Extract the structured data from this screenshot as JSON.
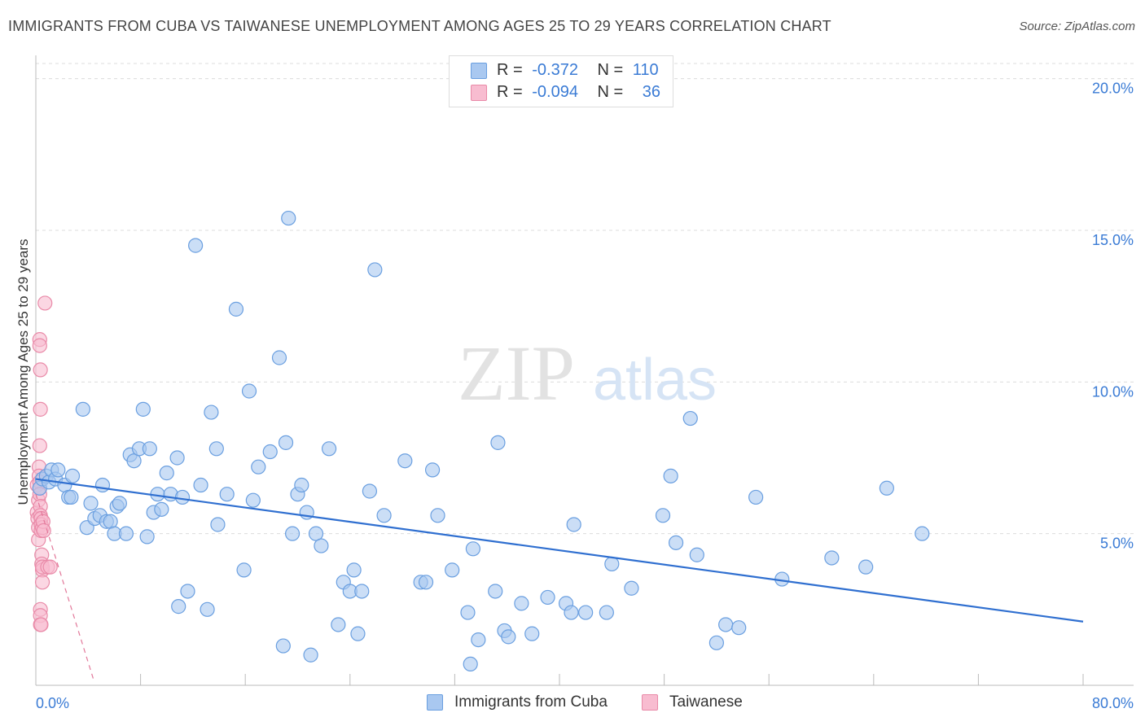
{
  "title": "IMMIGRANTS FROM CUBA VS TAIWANESE UNEMPLOYMENT AMONG AGES 25 TO 29 YEARS CORRELATION CHART",
  "source": "Source: ZipAtlas.com",
  "watermark": {
    "zip": "ZIP",
    "atlas": "atlas"
  },
  "legend": {
    "r_label": "R =",
    "n_label": "N =",
    "rows": [
      {
        "r": "-0.372",
        "n": "110",
        "color": "#a9c8f0",
        "border": "#6a9fe0"
      },
      {
        "r": "-0.094",
        "n": "36",
        "color": "#f8bcd0",
        "border": "#e98aa8"
      }
    ]
  },
  "bottom_legend": [
    {
      "label": "Immigrants from Cuba",
      "color": "#a9c8f0",
      "border": "#6a9fe0"
    },
    {
      "label": "Taiwanese",
      "color": "#f8bcd0",
      "border": "#e98aa8"
    }
  ],
  "chart_data": {
    "type": "scatter",
    "title": "IMMIGRANTS FROM CUBA VS TAIWANESE UNEMPLOYMENT AMONG AGES 25 TO 29 YEARS CORRELATION CHART",
    "xlabel": "",
    "ylabel": "Unemployment Among Ages 25 to 29 years",
    "xlim": [
      0,
      80
    ],
    "ylim": [
      0,
      20.5
    ],
    "x_tick_labels": [
      "0.0%",
      "80.0%"
    ],
    "y_ticks": [
      {
        "value": 5,
        "label": "5.0%"
      },
      {
        "value": 10,
        "label": "10.0%"
      },
      {
        "value": 15,
        "label": "15.0%"
      },
      {
        "value": 20,
        "label": "20.0%"
      }
    ],
    "grid": "horizontal dashed",
    "series": [
      {
        "name": "Immigrants from Cuba",
        "color": "#a9c8f0",
        "stroke": "#6a9fe0",
        "trend": {
          "x0": 0,
          "y0": 6.8,
          "x1": 80,
          "y1": 2.1,
          "color": "#2f6fd0",
          "style": "solid"
        },
        "points": [
          [
            0.3,
            6.5
          ],
          [
            0.5,
            6.8
          ],
          [
            0.8,
            6.9
          ],
          [
            1.0,
            6.7
          ],
          [
            1.2,
            7.1
          ],
          [
            1.5,
            6.8
          ],
          [
            1.7,
            7.1
          ],
          [
            2.2,
            6.6
          ],
          [
            2.5,
            6.2
          ],
          [
            2.8,
            6.9
          ],
          [
            2.7,
            6.2
          ],
          [
            3.6,
            9.1
          ],
          [
            3.9,
            5.2
          ],
          [
            4.2,
            6.0
          ],
          [
            4.5,
            5.5
          ],
          [
            4.9,
            5.6
          ],
          [
            5.1,
            6.6
          ],
          [
            5.4,
            5.4
          ],
          [
            5.7,
            5.4
          ],
          [
            6.0,
            5.0
          ],
          [
            6.2,
            5.9
          ],
          [
            6.4,
            6.0
          ],
          [
            6.9,
            5.0
          ],
          [
            7.2,
            7.6
          ],
          [
            7.5,
            7.4
          ],
          [
            7.9,
            7.8
          ],
          [
            8.2,
            9.1
          ],
          [
            8.5,
            4.9
          ],
          [
            8.7,
            7.8
          ],
          [
            9.0,
            5.7
          ],
          [
            9.3,
            6.3
          ],
          [
            9.6,
            5.8
          ],
          [
            10.0,
            7.0
          ],
          [
            10.3,
            6.3
          ],
          [
            10.8,
            7.5
          ],
          [
            11.2,
            6.2
          ],
          [
            11.6,
            3.1
          ],
          [
            10.9,
            2.6
          ],
          [
            12.2,
            14.5
          ],
          [
            12.6,
            6.6
          ],
          [
            13.1,
            2.5
          ],
          [
            13.4,
            9.0
          ],
          [
            13.8,
            7.8
          ],
          [
            13.9,
            5.3
          ],
          [
            14.6,
            6.3
          ],
          [
            15.3,
            12.4
          ],
          [
            15.9,
            3.8
          ],
          [
            16.3,
            9.7
          ],
          [
            16.6,
            6.1
          ],
          [
            17.0,
            7.2
          ],
          [
            17.9,
            7.7
          ],
          [
            18.6,
            10.8
          ],
          [
            18.9,
            1.3
          ],
          [
            19.1,
            8.0
          ],
          [
            19.3,
            15.4
          ],
          [
            19.6,
            5.0
          ],
          [
            20.0,
            6.3
          ],
          [
            20.3,
            6.6
          ],
          [
            20.7,
            5.7
          ],
          [
            21.0,
            1.0
          ],
          [
            21.4,
            5.0
          ],
          [
            21.8,
            4.6
          ],
          [
            22.4,
            7.8
          ],
          [
            23.1,
            2.0
          ],
          [
            23.5,
            3.4
          ],
          [
            24.0,
            3.1
          ],
          [
            24.3,
            3.8
          ],
          [
            24.6,
            1.7
          ],
          [
            24.9,
            3.1
          ],
          [
            25.5,
            6.4
          ],
          [
            25.9,
            13.7
          ],
          [
            26.6,
            5.6
          ],
          [
            28.2,
            7.4
          ],
          [
            29.4,
            3.4
          ],
          [
            29.8,
            3.4
          ],
          [
            30.3,
            7.1
          ],
          [
            30.7,
            5.6
          ],
          [
            31.8,
            3.8
          ],
          [
            33.0,
            2.4
          ],
          [
            33.2,
            0.7
          ],
          [
            33.4,
            4.5
          ],
          [
            33.8,
            1.5
          ],
          [
            35.1,
            3.1
          ],
          [
            35.3,
            8.0
          ],
          [
            35.8,
            1.8
          ],
          [
            36.1,
            1.6
          ],
          [
            37.1,
            2.7
          ],
          [
            37.9,
            1.7
          ],
          [
            39.1,
            2.9
          ],
          [
            40.5,
            2.7
          ],
          [
            40.9,
            2.4
          ],
          [
            41.1,
            5.3
          ],
          [
            42.0,
            2.4
          ],
          [
            43.6,
            2.4
          ],
          [
            44.0,
            4.0
          ],
          [
            45.5,
            3.2
          ],
          [
            47.9,
            5.6
          ],
          [
            48.5,
            6.9
          ],
          [
            48.9,
            4.7
          ],
          [
            50.0,
            8.8
          ],
          [
            50.5,
            4.3
          ],
          [
            52.0,
            1.4
          ],
          [
            52.7,
            2.0
          ],
          [
            53.7,
            1.9
          ],
          [
            55.0,
            6.2
          ],
          [
            57.0,
            3.5
          ],
          [
            60.8,
            4.2
          ],
          [
            63.4,
            3.9
          ],
          [
            65.0,
            6.5
          ],
          [
            67.7,
            5.0
          ]
        ]
      },
      {
        "name": "Taiwanese",
        "color": "#f8bcd0",
        "stroke": "#e98aa8",
        "trend": {
          "x0": 0,
          "y0": 6.3,
          "x1": 4.4,
          "y1": 0.2,
          "color": "#e27799",
          "style": "dashed"
        },
        "points": [
          [
            0.1,
            6.6
          ],
          [
            0.1,
            5.7
          ],
          [
            0.15,
            5.5
          ],
          [
            0.2,
            6.1
          ],
          [
            0.2,
            5.2
          ],
          [
            0.2,
            4.8
          ],
          [
            0.25,
            7.2
          ],
          [
            0.25,
            6.9
          ],
          [
            0.3,
            11.4
          ],
          [
            0.3,
            11.2
          ],
          [
            0.35,
            10.4
          ],
          [
            0.35,
            9.1
          ],
          [
            0.3,
            7.9
          ],
          [
            0.3,
            6.7
          ],
          [
            0.3,
            6.5
          ],
          [
            0.3,
            6.3
          ],
          [
            0.35,
            5.9
          ],
          [
            0.35,
            5.6
          ],
          [
            0.4,
            5.5
          ],
          [
            0.4,
            5.3
          ],
          [
            0.4,
            5.1
          ],
          [
            0.45,
            4.3
          ],
          [
            0.45,
            4.0
          ],
          [
            0.5,
            3.8
          ],
          [
            0.5,
            3.4
          ],
          [
            0.35,
            2.5
          ],
          [
            0.35,
            2.3
          ],
          [
            0.35,
            2.0
          ],
          [
            0.4,
            2.0
          ],
          [
            0.5,
            3.9
          ],
          [
            0.5,
            5.2
          ],
          [
            0.55,
            5.4
          ],
          [
            0.6,
            5.1
          ],
          [
            0.7,
            12.6
          ],
          [
            0.9,
            3.9
          ],
          [
            1.1,
            3.9
          ]
        ]
      }
    ]
  }
}
